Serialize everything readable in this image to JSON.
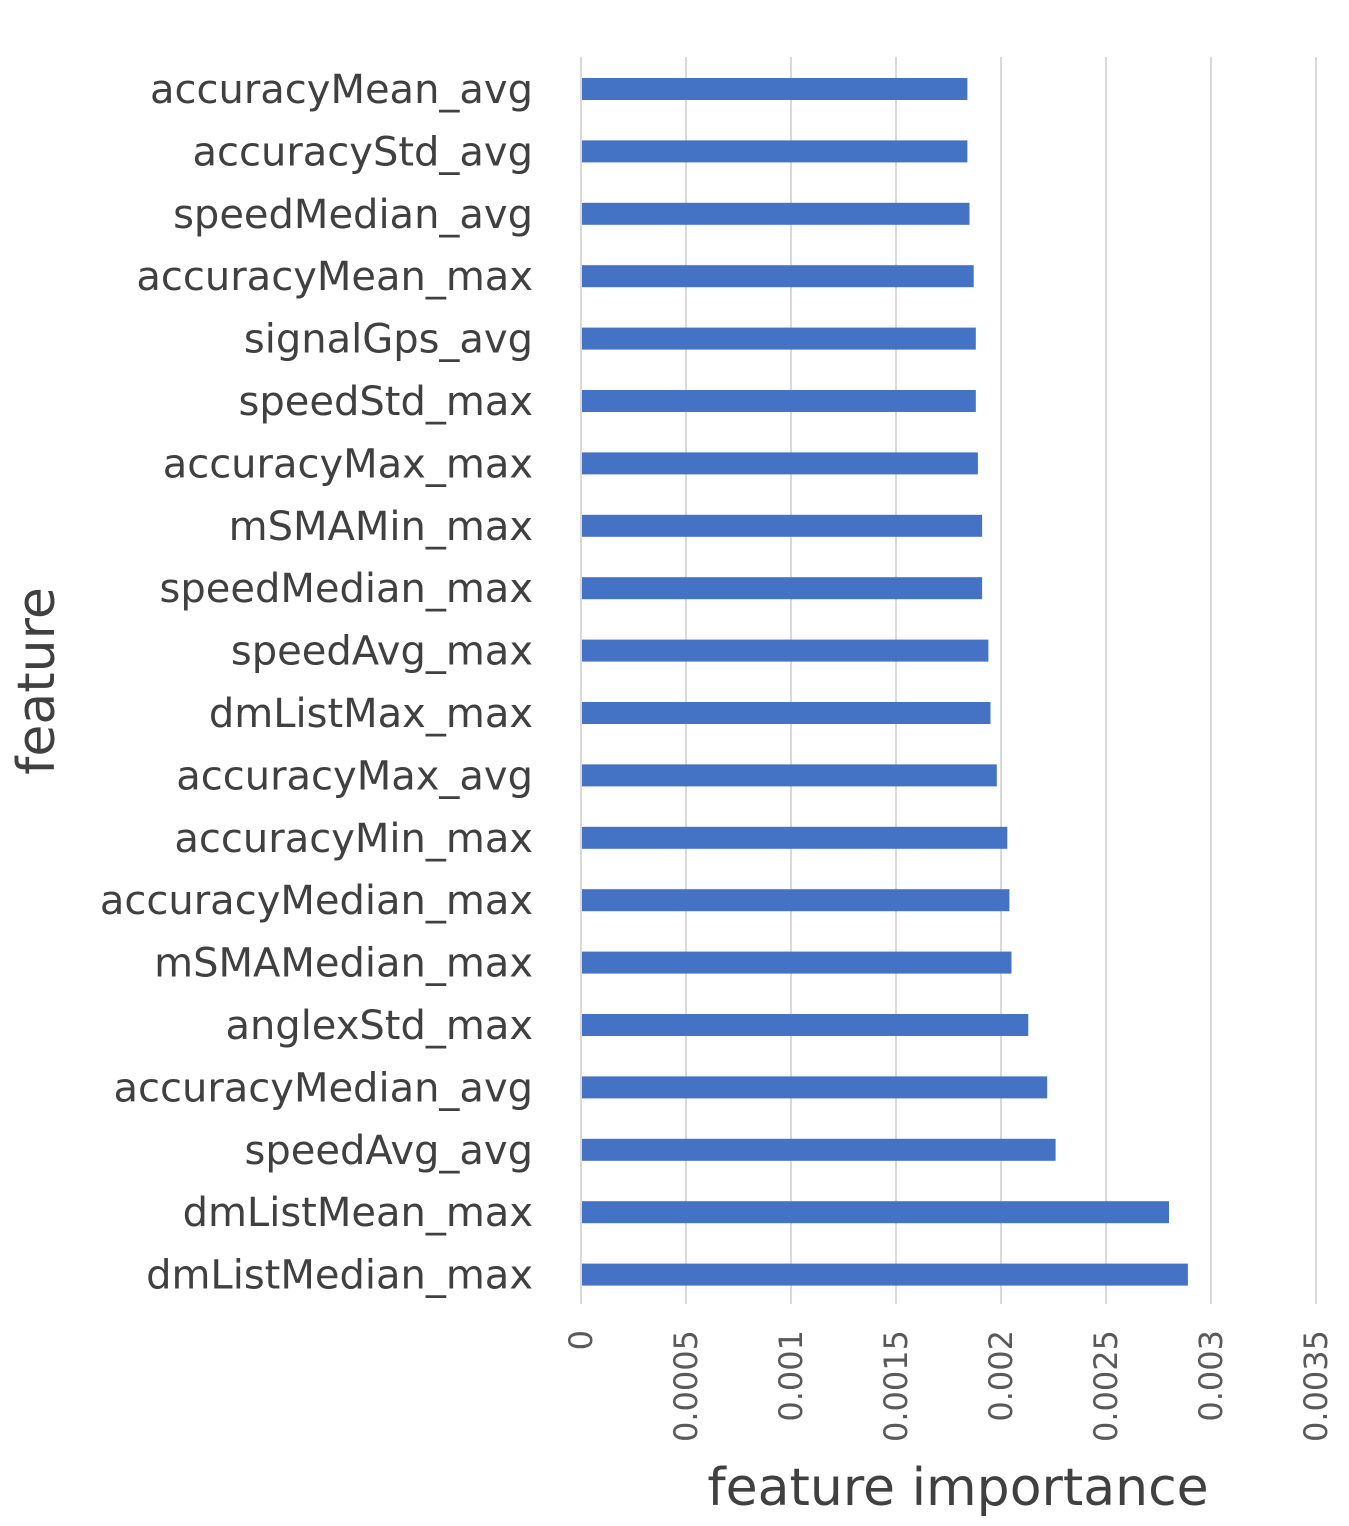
{
  "chart_data": {
    "type": "bar",
    "orientation": "horizontal",
    "xlabel": "feature importance",
    "ylabel": "feature",
    "xlim": [
      0,
      0.0035
    ],
    "x_ticks": [
      "0",
      "0.0005",
      "0.001",
      "0.0015",
      "0.002",
      "0.0025",
      "0.003",
      "0.0035"
    ],
    "grid": true,
    "bar_color": "#4472C4",
    "categories": [
      "accuracyMean_avg",
      "accuracyStd_avg",
      "speedMedian_avg",
      "accuracyMean_max",
      "signalGps_avg",
      "speedStd_max",
      "accuracyMax_max",
      "mSMAMin_max",
      "speedMedian_max",
      "speedAvg_max",
      "dmListMax_max",
      "accuracyMax_avg",
      "accuracyMin_max",
      "accuracyMedian_max",
      "mSMAMedian_max",
      "anglexStd_max",
      "accuracyMedian_avg",
      "speedAvg_avg",
      "dmListMean_max",
      "dmListMedian_max"
    ],
    "values": [
      0.00184,
      0.00184,
      0.00185,
      0.00187,
      0.00188,
      0.00188,
      0.00189,
      0.00191,
      0.00191,
      0.00194,
      0.00195,
      0.00198,
      0.00203,
      0.00204,
      0.00205,
      0.00213,
      0.00222,
      0.00226,
      0.0028,
      0.00289
    ]
  }
}
